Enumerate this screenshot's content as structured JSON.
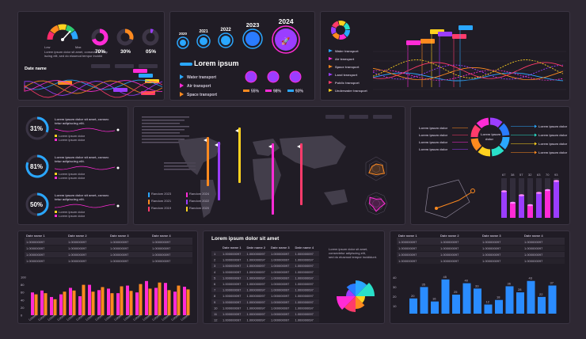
{
  "colors": {
    "background": "#2e2833",
    "panel": "#201c25",
    "accent_blue": "#2aa7ff",
    "accent_pink": "#ff2bd6",
    "accent_orange": "#ff8a1f",
    "accent_purple": "#9b3dff",
    "accent_yellow": "#ffd21f"
  },
  "top_left": {
    "gauge_low": "Low",
    "gauge_max": "Max",
    "gauge_text": "Lorem ipsum dolor sit amet, consectetur adipiscing elit, sed do eiusmod tempor incidid",
    "donuts": [
      {
        "label": "70%",
        "value": 0.7,
        "color": "#ff2bd6"
      },
      {
        "label": "30%",
        "value": 0.3,
        "color": "#ff8a1f"
      },
      {
        "label": "05%",
        "value": 0.05,
        "color": "#9b3dff"
      }
    ],
    "chart_title": "Date name"
  },
  "timeline": {
    "years": [
      "2020",
      "2021",
      "2022",
      "2023",
      "2024"
    ],
    "title": "Lorem ipsum",
    "items": [
      {
        "label": "Water transport",
        "color": "#2aa7ff"
      },
      {
        "label": "Air transport",
        "color": "#ff2bd6"
      },
      {
        "label": "Space transport",
        "color": "#ff8a1f"
      }
    ],
    "stats": [
      "55%",
      "98%",
      "93%"
    ]
  },
  "top_right": {
    "legend": [
      {
        "label": "Water transport",
        "color": "#2aa7ff"
      },
      {
        "label": "Air transport",
        "color": "#ff2bd6"
      },
      {
        "label": "Space transport",
        "color": "#ff8a1f"
      },
      {
        "label": "Land transport",
        "color": "#9b3dff"
      },
      {
        "label": "Public transport",
        "color": "#ff3b6b"
      },
      {
        "label": "Underwater transport",
        "color": "#ffd21f"
      }
    ]
  },
  "progress": {
    "items": [
      {
        "label": "31%",
        "value": 0.31,
        "title": "Lorem ipsum dolor sit amet, consectetur adipiscing elit.",
        "l1": "Lorem ipsum dolor",
        "l2": "Lorem ipsum dolor"
      },
      {
        "label": "81%",
        "value": 0.81,
        "title": "Lorem ipsum dolor sit amet, consectetur adipiscing elit.",
        "l1": "Lorem ipsum dolor",
        "l2": "Lorem ipsum dolor"
      },
      {
        "label": "50%",
        "value": 0.5,
        "title": "Lorem ipsum dolor sit amet, consectetur adipiscing elit.",
        "l1": "Lorem ipsum dolor",
        "l2": "Lorem ipsum dolor"
      }
    ]
  },
  "map_panel": {
    "legend_items": [
      "Random 2023",
      "Random 2024",
      "Random 2021",
      "Random 2022",
      "Random 2019",
      "Random 2020"
    ]
  },
  "cycle": {
    "left_labels": [
      "Lorem ipsum dolor",
      "Lorem ipsum dolor",
      "Lorem ipsum dolor",
      "Lorem ipsum dolor"
    ],
    "right_labels": [
      "Lorem ipsum dolor",
      "Lorem ipsum dolor",
      "Lorem ipsum dolor",
      "Lorem ipsum dolor"
    ],
    "center": "Lorem ipsum dolor",
    "bars3d": {
      "labels": [
        "67",
        "38",
        "57",
        "32",
        "63",
        "70",
        "93"
      ],
      "values": [
        67,
        38,
        57,
        32,
        63,
        70,
        93
      ]
    }
  },
  "table1": {
    "headers": [
      "Date name 1",
      "Date name 2",
      "Date name 3",
      "Date name 4"
    ],
    "cell": "1.000000097",
    "rows": 4
  },
  "bar_left": {
    "yticks": [
      "100",
      "80",
      "60",
      "40",
      "20",
      "0"
    ],
    "series_a": [
      60,
      65,
      48,
      55,
      72,
      50,
      80,
      66,
      70,
      58,
      78,
      60,
      90,
      72,
      85,
      62,
      75
    ],
    "series_b": [
      55,
      58,
      42,
      62,
      65,
      80,
      62,
      74,
      58,
      76,
      64,
      82,
      70,
      86,
      66,
      78,
      68
    ],
    "xlabel": "Lorem"
  },
  "center_table": {
    "title": "Lorem ipsum dolor sit amet",
    "headers": [
      "Date name 1",
      "Date name 2",
      "Date name 3",
      "Date name 4"
    ],
    "cell": "1.000000097",
    "rows": [
      "1",
      "2",
      "3",
      "4",
      "5",
      "6",
      "7",
      "8",
      "9",
      "10",
      "11",
      "12"
    ],
    "note": "Lorem ipsum dolor sit amet, consectetur adipiscing elit, sed do eiusmod tempor incididunt."
  },
  "table3": {
    "headers": [
      "Date name 1",
      "Date name 2",
      "Date name 3",
      "Date name 4"
    ],
    "cell": "1.000000097",
    "rows": 4
  },
  "bar_right": {
    "yticks": [
      "40",
      "30",
      "20",
      "10"
    ],
    "values": [
      20,
      35,
      16,
      45,
      25,
      40,
      33,
      12,
      18,
      36,
      28,
      43,
      22,
      37
    ],
    "labels": [
      "20",
      "35",
      "16",
      "45",
      "25",
      "40",
      "33",
      "12",
      "18",
      "36",
      "28",
      "43",
      "22",
      "37"
    ]
  }
}
